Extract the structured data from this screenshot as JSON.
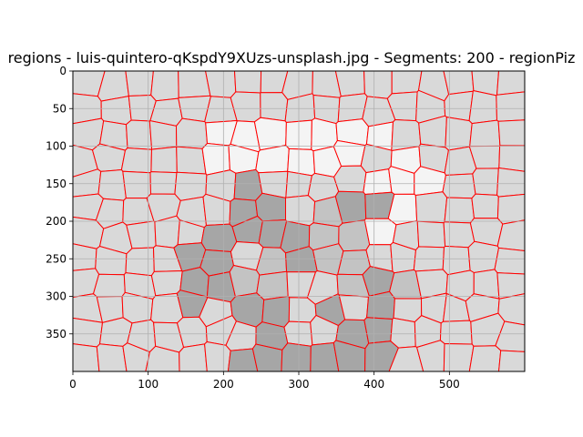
{
  "chart_data": {
    "type": "heatmap",
    "title": "regions - luis-quintero-qKspdY9XUzs-unsplash.jpg - Segments: 200 - regionPiz",
    "xlabel": "",
    "ylabel": "",
    "xlim": [
      0,
      600
    ],
    "ylim": [
      400,
      0
    ],
    "x_ticks": [
      0,
      100,
      200,
      300,
      400,
      500
    ],
    "y_ticks": [
      0,
      50,
      100,
      150,
      200,
      250,
      300,
      350
    ],
    "grid": true,
    "colors": {
      "light_region": "#f4f4f4",
      "mid_region": "#d9d9d9",
      "gray_region": "#c3c3c3",
      "dark_region": "#a6a6a6",
      "boundary": "#ff0000",
      "grid": "#b0b0b0"
    },
    "regions": {
      "light": [
        [
          200,
          100
        ],
        [
          233,
          93
        ],
        [
          268,
          100
        ],
        [
          300,
          105
        ],
        [
          330,
          100
        ],
        [
          372,
          98
        ],
        [
          410,
          92
        ],
        [
          440,
          120
        ],
        [
          428,
          150
        ],
        [
          460,
          140
        ],
        [
          425,
          200
        ]
      ],
      "gray": [
        [
          390,
          180
        ],
        [
          360,
          185
        ],
        [
          325,
          220
        ],
        [
          350,
          245
        ],
        [
          387,
          240
        ],
        [
          385,
          275
        ],
        [
          330,
          265
        ],
        [
          300,
          225
        ],
        [
          230,
          190
        ],
        [
          225,
          215
        ],
        [
          270,
          225
        ],
        [
          270,
          265
        ],
        [
          235,
          270
        ],
        [
          210,
          280
        ],
        [
          450,
          275
        ],
        [
          430,
          280
        ]
      ],
      "dark": [
        [
          150,
          265
        ],
        [
          175,
          300
        ],
        [
          190,
          250
        ],
        [
          225,
          200
        ],
        [
          210,
          215
        ],
        [
          190,
          285
        ],
        [
          245,
          175
        ],
        [
          230,
          150
        ],
        [
          220,
          175
        ],
        [
          265,
          220
        ],
        [
          300,
          240
        ],
        [
          280,
          185
        ],
        [
          240,
          325
        ],
        [
          270,
          340
        ],
        [
          240,
          375
        ],
        [
          265,
          385
        ],
        [
          290,
          380
        ],
        [
          360,
          175
        ],
        [
          415,
          170
        ],
        [
          415,
          290
        ],
        [
          350,
          310
        ],
        [
          370,
          360
        ],
        [
          420,
          330
        ],
        [
          400,
          370
        ],
        [
          340,
          400
        ],
        [
          395,
          400
        ]
      ]
    }
  }
}
